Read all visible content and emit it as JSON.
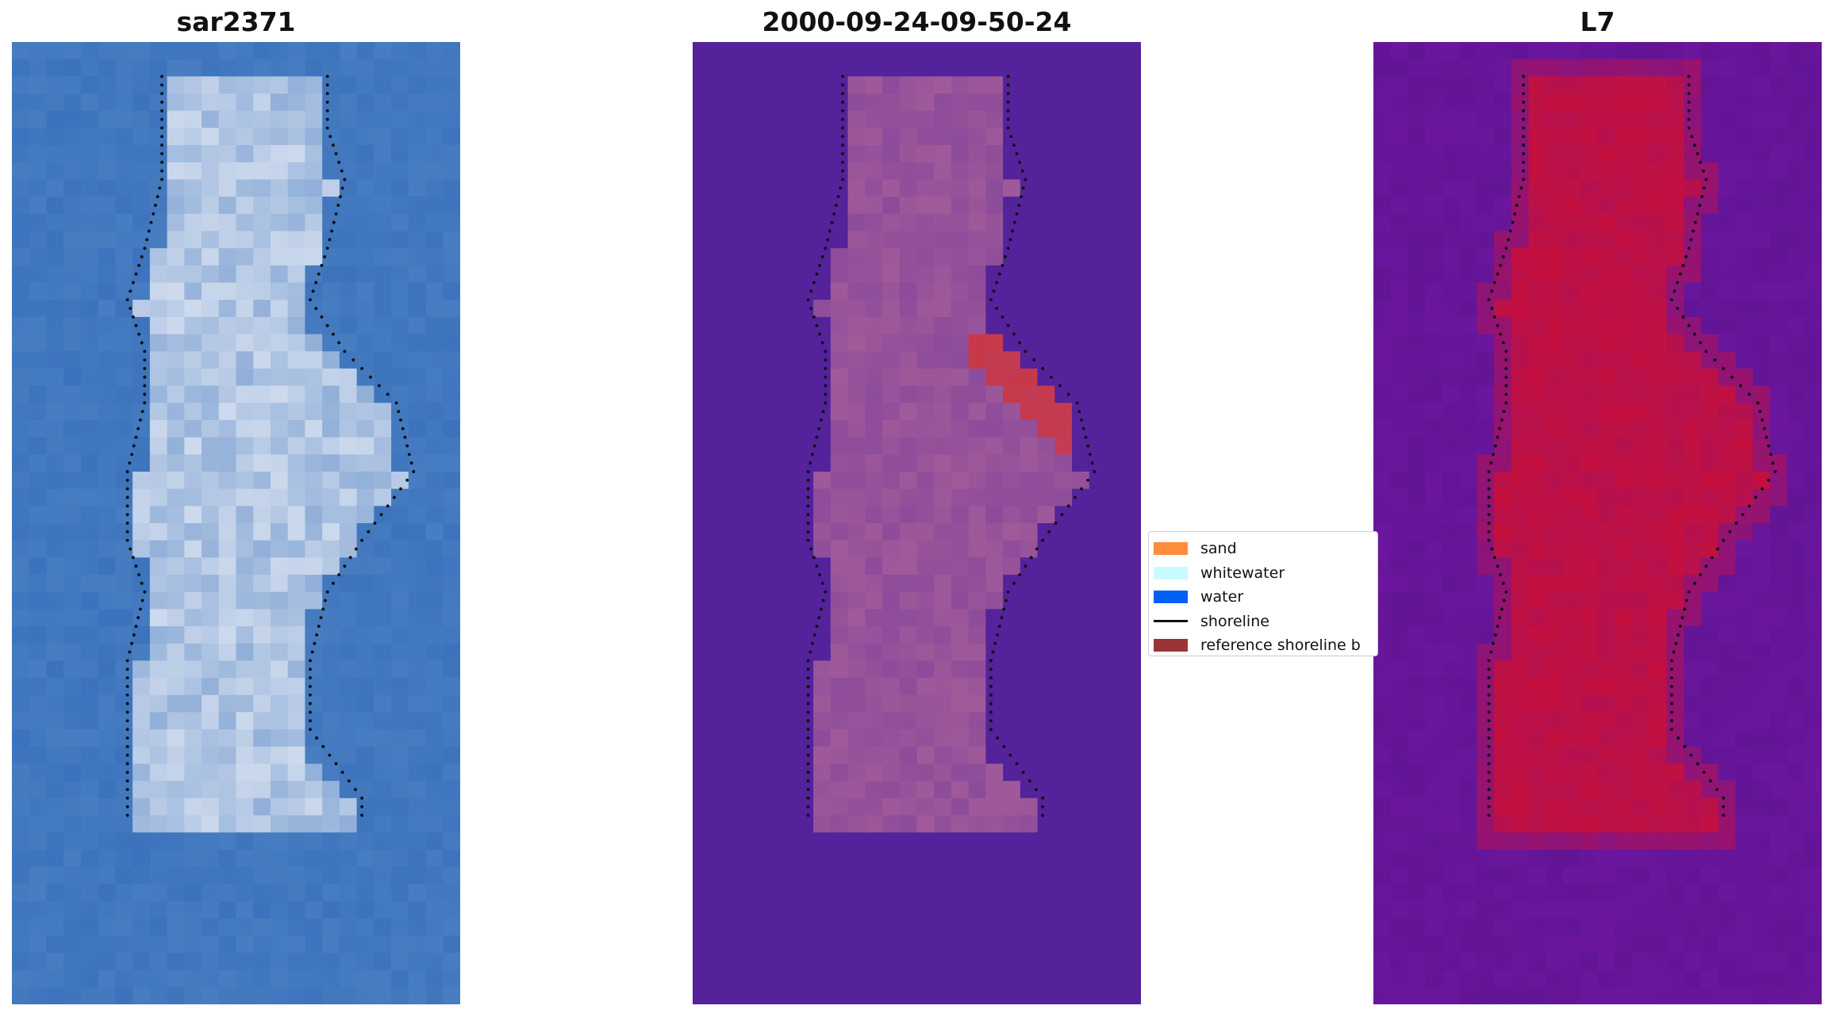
{
  "panels": [
    {
      "title": "sar2371"
    },
    {
      "title": "2000-09-24-09-50-24"
    },
    {
      "title": "L7"
    }
  ],
  "legend": {
    "items": [
      {
        "label": "sand",
        "color": "#ff8c3a",
        "kind": "patch"
      },
      {
        "label": "whitewater",
        "color": "#c8fbff",
        "kind": "patch"
      },
      {
        "label": "water",
        "color": "#0060f5",
        "kind": "patch"
      },
      {
        "label": "shoreline",
        "color": "#111111",
        "kind": "line"
      },
      {
        "label": "reference shoreline b",
        "color": "#9a3535",
        "kind": "patch"
      }
    ]
  },
  "colors": {
    "ocean_blue": "#3c73bc",
    "sand_white": "#e6ebf5",
    "classified_background": "#54229a",
    "classified_sand": "#a05a9a",
    "classified_reference": "#c83848",
    "index_low": "#6a169e",
    "index_high": "#c8103a"
  }
}
